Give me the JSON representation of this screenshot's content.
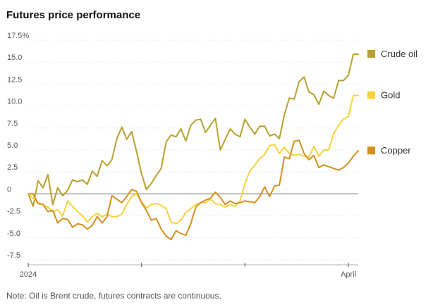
{
  "title": "Futures price performance",
  "note": "Note: Oil is Brent crude, futures contracts are continuous.",
  "colors": {
    "crude": "#b8a02e",
    "gold": "#f5d33c",
    "copper": "#d4901f",
    "zero": "#888888",
    "grid": "#dddddd"
  },
  "chart_data": {
    "type": "line",
    "title": "Futures price performance",
    "ylabel": "",
    "ylim": [
      -7.5,
      17.5
    ],
    "yticks": [
      "17.5%",
      "15.0",
      "12.5",
      "10.0",
      "7.5",
      "5.0",
      "2.5",
      "0",
      "-2.5",
      "-5.0",
      "-7.5"
    ],
    "xticks": [
      "2024",
      "",
      "",
      "April"
    ],
    "x_range": [
      0,
      67
    ],
    "x_tick_positions": [
      0,
      23,
      44,
      65
    ],
    "series": [
      {
        "name": "Crude oil",
        "x": [
          0,
          1,
          2,
          3,
          4,
          5,
          6,
          7,
          8,
          9,
          10,
          11,
          12,
          13,
          14,
          15,
          16,
          17,
          18,
          19,
          20,
          21,
          22,
          23,
          24,
          25,
          26,
          27,
          28,
          29,
          30,
          31,
          32,
          33,
          34,
          35,
          36,
          37,
          38,
          39,
          40,
          41,
          42,
          43,
          44,
          45,
          46,
          47,
          48,
          49,
          50,
          51,
          52,
          53,
          54,
          55,
          56,
          57,
          58,
          59,
          60,
          61,
          62,
          63,
          64,
          65,
          66,
          67
        ],
        "values": [
          0,
          -1.4,
          1.5,
          0.7,
          2.2,
          -1.2,
          0.7,
          -0.2,
          0.4,
          1.6,
          1.4,
          1.6,
          1.1,
          2.6,
          2.0,
          3.8,
          3.2,
          3.9,
          6.3,
          7.6,
          6.2,
          7.1,
          4.8,
          2.3,
          0.5,
          1.2,
          2.1,
          2.9,
          5.9,
          6.7,
          6.5,
          7.4,
          6.0,
          7.8,
          8.4,
          8.5,
          7.0,
          7.8,
          8.6,
          5.0,
          6.2,
          7.4,
          6.8,
          6.5,
          8.5,
          7.6,
          6.8,
          7.7,
          7.7,
          6.6,
          6.8,
          6.3,
          9.0,
          10.9,
          10.8,
          12.8,
          13.3,
          11.6,
          11.3,
          10.2,
          11.7,
          11.2,
          10.9,
          12.9,
          12.9,
          13.5,
          15.9,
          15.9
        ]
      },
      {
        "name": "Gold",
        "x": [
          0,
          1,
          2,
          3,
          4,
          5,
          6,
          7,
          8,
          9,
          10,
          11,
          12,
          13,
          14,
          15,
          16,
          17,
          18,
          19,
          20,
          21,
          22,
          23,
          24,
          25,
          26,
          27,
          28,
          29,
          30,
          31,
          32,
          33,
          34,
          35,
          36,
          37,
          38,
          39,
          40,
          41,
          42,
          43,
          44,
          45,
          46,
          47,
          48,
          49,
          50,
          51,
          52,
          53,
          54,
          55,
          56,
          57,
          58,
          59,
          60,
          61,
          62,
          63,
          64,
          65,
          66,
          67
        ],
        "values": [
          0,
          -0.5,
          -1.0,
          -1.2,
          -1.5,
          -2.0,
          -1.8,
          -2.5,
          -0.8,
          -1.4,
          -2.0,
          -2.5,
          -3.2,
          -2.6,
          -2.2,
          -2.6,
          -2.3,
          -2.6,
          -2.6,
          -2.3,
          -1.2,
          -0.3,
          0.0,
          -0.9,
          -1.6,
          -1.2,
          -1.1,
          -1.3,
          -1.7,
          -3.2,
          -3.4,
          -3.0,
          -2.1,
          -1.7,
          -1.2,
          -1.0,
          -1.0,
          -0.6,
          -1.1,
          -1.2,
          -1.5,
          -1.2,
          -1.4,
          -0.8,
          1.2,
          2.6,
          3.3,
          4.0,
          4.5,
          5.5,
          5.6,
          4.6,
          5.3,
          4.6,
          4.4,
          4.5,
          4.3,
          4.2,
          5.4,
          4.3,
          5.0,
          5.0,
          6.9,
          7.8,
          8.5,
          8.8,
          11.2,
          11.2
        ]
      },
      {
        "name": "Copper",
        "x": [
          0,
          1,
          2,
          3,
          4,
          5,
          6,
          7,
          8,
          9,
          10,
          11,
          12,
          13,
          14,
          15,
          16,
          17,
          18,
          19,
          20,
          21,
          22,
          23,
          24,
          25,
          26,
          27,
          28,
          29,
          30,
          31,
          32,
          33,
          34,
          35,
          36,
          37,
          38,
          39,
          40,
          41,
          42,
          43,
          44,
          45,
          46,
          47,
          48,
          49,
          50,
          51,
          52,
          53,
          54,
          55,
          56,
          57,
          58,
          59,
          60,
          61,
          62,
          63,
          64,
          65,
          66,
          67
        ],
        "values": [
          0,
          0.0,
          -1.1,
          -1.2,
          -2.0,
          -1.9,
          -3.3,
          -2.8,
          -2.9,
          -3.8,
          -3.4,
          -3.5,
          -4.0,
          -3.6,
          -2.6,
          -3.3,
          -2.6,
          -0.2,
          -0.6,
          -1.0,
          -0.3,
          0.5,
          0.3,
          -1.0,
          -1.9,
          -3.0,
          -2.8,
          -4.0,
          -4.8,
          -5.2,
          -4.2,
          -4.5,
          -4.7,
          -3.4,
          -1.5,
          -1.0,
          -0.7,
          -0.5,
          0.2,
          -0.4,
          -1.2,
          -0.8,
          -1.1,
          -1.0,
          -0.8,
          -0.9,
          -1.0,
          -0.3,
          0.8,
          -0.3,
          0.9,
          1.0,
          4.2,
          4.0,
          6.0,
          6.1,
          4.6,
          3.9,
          4.4,
          3.0,
          3.3,
          3.1,
          2.9,
          2.7,
          3.0,
          3.5,
          4.3,
          4.9
        ]
      }
    ]
  }
}
